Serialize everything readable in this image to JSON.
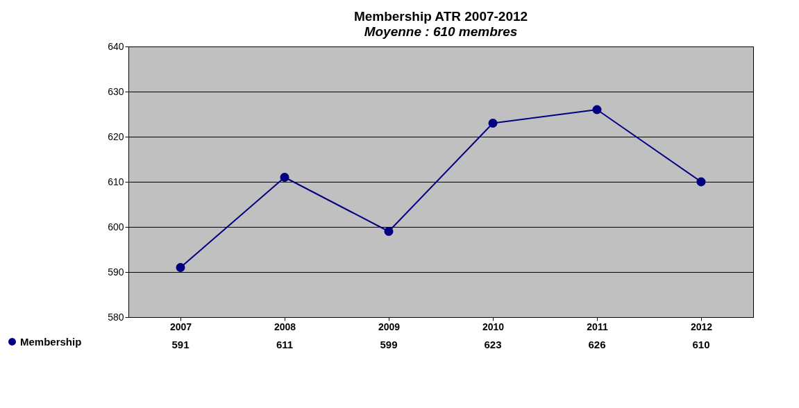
{
  "chart_data": {
    "type": "line",
    "title": "Membership ATR 2007-2012",
    "subtitle": "Moyenne : 610 membres",
    "categories": [
      "2007",
      "2008",
      "2009",
      "2010",
      "2011",
      "2012"
    ],
    "series": [
      {
        "name": "Membership",
        "color": "#000080",
        "values": [
          591,
          611,
          599,
          623,
          626,
          610
        ]
      }
    ],
    "ylim": [
      580,
      640
    ],
    "yticks": [
      580,
      590,
      600,
      610,
      620,
      630,
      640
    ],
    "grid": "y",
    "legend": "bottom left",
    "marker": "circle",
    "line_style": "solid",
    "data_labels": true
  }
}
